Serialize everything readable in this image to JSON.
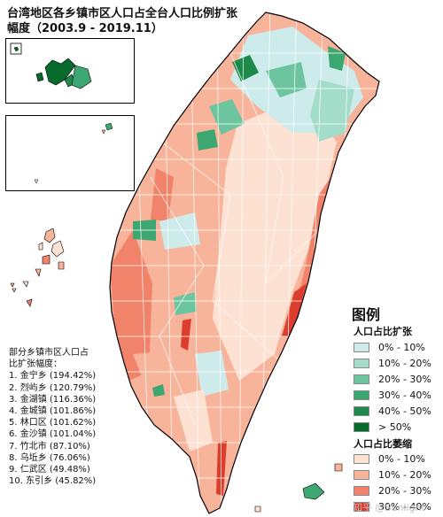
{
  "title": {
    "line1": "台湾地区各乡镇市区人口占全台人口比例扩张",
    "line2": "幅度（2003.9 - 2019.11）"
  },
  "legend": {
    "heading": "图例",
    "expansion_label": "人口占比扩张",
    "expansion": [
      {
        "label": "0% - 10%",
        "color": "#cdebeb"
      },
      {
        "label": "10% - 20%",
        "color": "#a3dcc9"
      },
      {
        "label": "20% - 30%",
        "color": "#6dc5a0"
      },
      {
        "label": "30% - 40%",
        "color": "#3da772"
      },
      {
        "label": "40% - 50%",
        "color": "#1d8a4a"
      },
      {
        "label": "> 50%",
        "color": "#076b2c"
      }
    ],
    "shrink_label": "人口占比萎缩",
    "shrink": [
      {
        "label": "0% - 10%",
        "color": "#fde1d2"
      },
      {
        "label": "10% - 20%",
        "color": "#f8b49a"
      },
      {
        "label": "20% - 30%",
        "color": "#f1836b"
      },
      {
        "label": "30% - 40%",
        "color": "#dc3d2c"
      }
    ]
  },
  "notes": {
    "header_line1": "部分乡镇市区人口占",
    "header_line2": "比扩张幅度：",
    "items": [
      "1. 金宁乡 (194.42%)",
      "2. 烈屿乡 (120.79%)",
      "3. 金湖镇 (116.36%)",
      "4. 金城镇 (101.86%)",
      "5. 林口区 (101.62%)",
      "6. 金沙镇 (101.04%)",
      "7. 竹北市 (87.10%)",
      "8. 乌坵乡 (76.06%)",
      "9. 仁武区 (49.48%)",
      "10. 东引乡 (45.82%)"
    ]
  },
  "watermark": "知乎 @Sunlight"
}
